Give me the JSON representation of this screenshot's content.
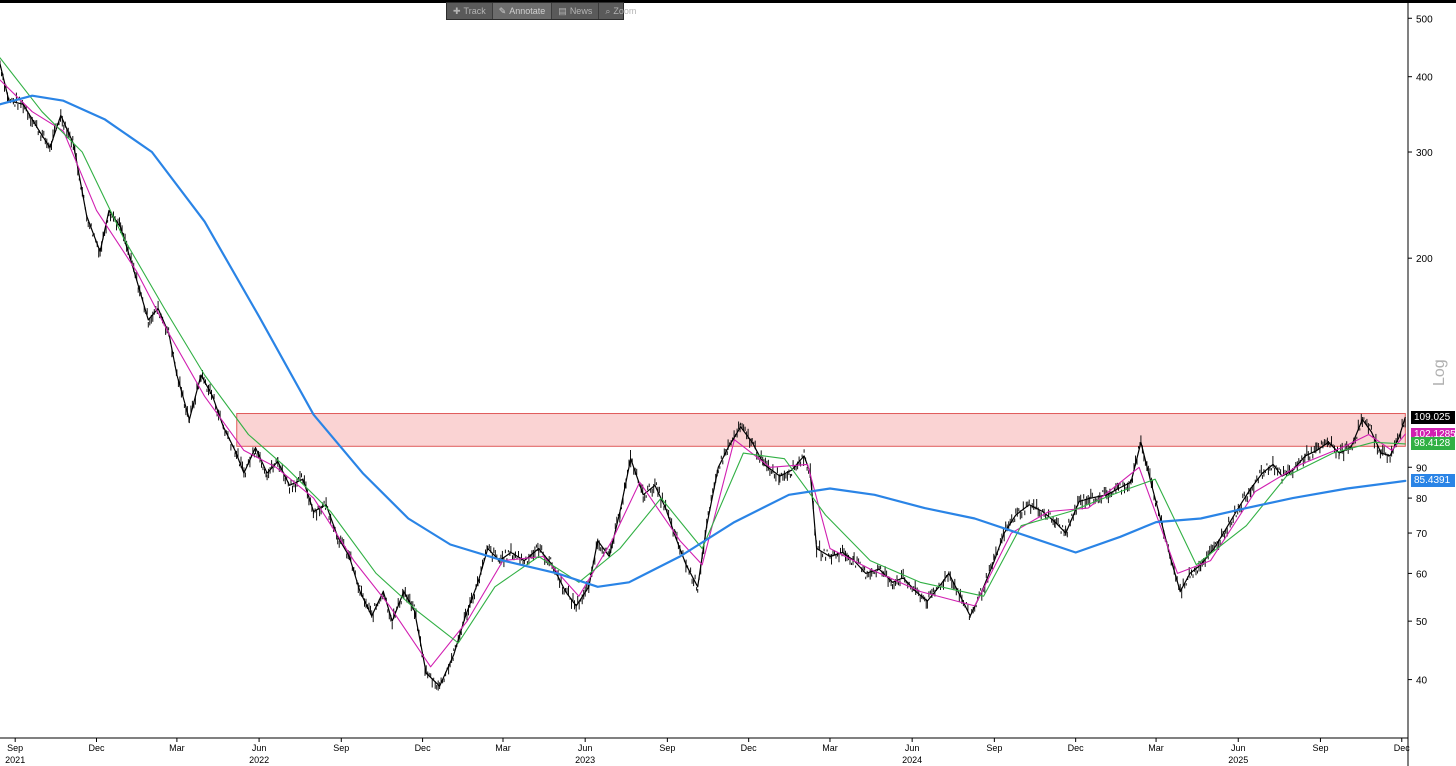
{
  "toolbar": {
    "items": [
      {
        "label": "Track",
        "icon": "crosshair-icon",
        "active": false
      },
      {
        "label": "Annotate",
        "icon": "pencil-icon",
        "active": true
      },
      {
        "label": "News",
        "icon": "news-icon",
        "active": false
      },
      {
        "label": "Zoom",
        "icon": "magnifier-icon",
        "active": false
      }
    ]
  },
  "chart_data": {
    "type": "line",
    "title": "",
    "xlabel": "",
    "ylabel": "",
    "y_scale": "log",
    "scale_label": "Log",
    "ylim": [
      32,
      520
    ],
    "xlim": [
      "2021-08-15",
      "2025-12-08"
    ],
    "y_ticks": [
      40,
      50,
      60,
      70,
      80,
      90,
      200,
      300,
      400,
      500
    ],
    "x_month_ticks": [
      {
        "date": "2021-09-01",
        "label": "Sep"
      },
      {
        "date": "2021-12-01",
        "label": "Dec"
      },
      {
        "date": "2022-03-01",
        "label": "Mar"
      },
      {
        "date": "2022-06-01",
        "label": "Jun"
      },
      {
        "date": "2022-09-01",
        "label": "Sep"
      },
      {
        "date": "2022-12-01",
        "label": "Dec"
      },
      {
        "date": "2023-03-01",
        "label": "Mar"
      },
      {
        "date": "2023-06-01",
        "label": "Jun"
      },
      {
        "date": "2023-09-01",
        "label": "Sep"
      },
      {
        "date": "2023-12-01",
        "label": "Dec"
      },
      {
        "date": "2024-03-01",
        "label": "Mar"
      },
      {
        "date": "2024-06-01",
        "label": "Jun"
      },
      {
        "date": "2024-09-01",
        "label": "Sep"
      },
      {
        "date": "2024-12-01",
        "label": "Dec"
      },
      {
        "date": "2025-03-01",
        "label": "Mar"
      },
      {
        "date": "2025-06-01",
        "label": "Jun"
      },
      {
        "date": "2025-09-01",
        "label": "Sep"
      },
      {
        "date": "2025-12-01",
        "label": "Dec"
      }
    ],
    "x_year_labels": [
      {
        "date": "2021-09-01",
        "label": "2021"
      },
      {
        "date": "2022-06-01",
        "label": "2022"
      },
      {
        "date": "2023-06-01",
        "label": "2023"
      },
      {
        "date": "2024-06-01",
        "label": "2024"
      },
      {
        "date": "2025-06-01",
        "label": "2025"
      }
    ],
    "resistance_zone": {
      "from": "2022-05-07",
      "to": "2025-12-05",
      "low": 97.5,
      "high": 110.5,
      "color": "#f8c4c4",
      "border": "#e05a5a"
    },
    "series": [
      {
        "kind": "price",
        "color": "#000000",
        "points": [
          [
            "2021-08-15",
            420
          ],
          [
            "2021-08-25",
            365
          ],
          [
            "2021-09-10",
            360
          ],
          [
            "2021-09-28",
            325
          ],
          [
            "2021-10-10",
            305
          ],
          [
            "2021-10-22",
            345
          ],
          [
            "2021-11-05",
            310
          ],
          [
            "2021-11-20",
            235
          ],
          [
            "2021-12-05",
            205
          ],
          [
            "2021-12-15",
            240
          ],
          [
            "2021-12-28",
            225
          ],
          [
            "2022-01-10",
            195
          ],
          [
            "2022-01-28",
            158
          ],
          [
            "2022-02-08",
            165
          ],
          [
            "2022-02-20",
            150
          ],
          [
            "2022-03-01",
            128
          ],
          [
            "2022-03-15",
            108
          ],
          [
            "2022-03-28",
            128
          ],
          [
            "2022-04-10",
            118
          ],
          [
            "2022-04-22",
            105
          ],
          [
            "2022-05-05",
            96
          ],
          [
            "2022-05-15",
            88
          ],
          [
            "2022-05-28",
            97
          ],
          [
            "2022-06-10",
            88
          ],
          [
            "2022-06-22",
            92
          ],
          [
            "2022-07-05",
            84
          ],
          [
            "2022-07-20",
            86
          ],
          [
            "2022-08-01",
            76
          ],
          [
            "2022-08-15",
            78
          ],
          [
            "2022-08-28",
            69
          ],
          [
            "2022-09-10",
            64
          ],
          [
            "2022-09-22",
            56
          ],
          [
            "2022-10-05",
            51
          ],
          [
            "2022-10-18",
            56
          ],
          [
            "2022-10-28",
            50
          ],
          [
            "2022-11-10",
            56
          ],
          [
            "2022-11-22",
            52
          ],
          [
            "2022-12-05",
            41
          ],
          [
            "2022-12-20",
            39
          ],
          [
            "2023-01-05",
            44
          ],
          [
            "2023-01-18",
            51
          ],
          [
            "2023-02-01",
            58
          ],
          [
            "2023-02-12",
            66
          ],
          [
            "2023-02-25",
            63
          ],
          [
            "2023-03-10",
            65
          ],
          [
            "2023-03-25",
            63
          ],
          [
            "2023-04-10",
            66
          ],
          [
            "2023-04-25",
            62
          ],
          [
            "2023-05-10",
            56
          ],
          [
            "2023-05-22",
            53
          ],
          [
            "2023-06-05",
            57
          ],
          [
            "2023-06-15",
            68
          ],
          [
            "2023-06-28",
            64
          ],
          [
            "2023-07-10",
            76
          ],
          [
            "2023-07-22",
            93
          ],
          [
            "2023-08-05",
            81
          ],
          [
            "2023-08-18",
            84
          ],
          [
            "2023-08-30",
            77
          ],
          [
            "2023-09-10",
            69
          ],
          [
            "2023-09-22",
            62
          ],
          [
            "2023-10-05",
            57
          ],
          [
            "2023-10-15",
            72
          ],
          [
            "2023-10-28",
            90
          ],
          [
            "2023-11-08",
            97
          ],
          [
            "2023-11-22",
            105
          ],
          [
            "2023-12-05",
            99
          ],
          [
            "2023-12-18",
            91
          ],
          [
            "2024-01-05",
            87
          ],
          [
            "2024-01-18",
            89
          ],
          [
            "2024-02-01",
            94
          ],
          [
            "2024-02-08",
            88
          ],
          [
            "2024-02-15",
            66
          ],
          [
            "2024-03-01",
            64
          ],
          [
            "2024-03-15",
            65
          ],
          [
            "2024-03-28",
            63
          ],
          [
            "2024-04-10",
            60
          ],
          [
            "2024-04-25",
            61
          ],
          [
            "2024-05-10",
            58
          ],
          [
            "2024-05-22",
            59
          ],
          [
            "2024-06-05",
            56
          ],
          [
            "2024-06-18",
            54
          ],
          [
            "2024-07-01",
            57
          ],
          [
            "2024-07-12",
            60
          ],
          [
            "2024-07-25",
            55
          ],
          [
            "2024-08-05",
            51
          ],
          [
            "2024-08-18",
            56
          ],
          [
            "2024-09-01",
            63
          ],
          [
            "2024-09-12",
            70
          ],
          [
            "2024-09-25",
            75
          ],
          [
            "2024-10-10",
            78
          ],
          [
            "2024-10-25",
            76
          ],
          [
            "2024-11-08",
            73
          ],
          [
            "2024-11-20",
            70
          ],
          [
            "2024-12-05",
            79
          ],
          [
            "2024-12-18",
            80
          ],
          [
            "2025-01-05",
            81
          ],
          [
            "2025-01-18",
            83
          ],
          [
            "2025-02-01",
            85
          ],
          [
            "2025-02-12",
            99
          ],
          [
            "2025-02-25",
            83
          ],
          [
            "2025-03-08",
            72
          ],
          [
            "2025-03-18",
            63
          ],
          [
            "2025-03-28",
            56
          ],
          [
            "2025-04-08",
            60
          ],
          [
            "2025-04-20",
            62
          ],
          [
            "2025-05-05",
            66
          ],
          [
            "2025-05-18",
            71
          ],
          [
            "2025-06-01",
            77
          ],
          [
            "2025-06-15",
            83
          ],
          [
            "2025-06-28",
            88
          ],
          [
            "2025-07-10",
            91
          ],
          [
            "2025-07-20",
            87
          ],
          [
            "2025-08-01",
            89
          ],
          [
            "2025-08-15",
            94
          ],
          [
            "2025-08-28",
            96
          ],
          [
            "2025-09-10",
            99
          ],
          [
            "2025-09-22",
            95
          ],
          [
            "2025-10-05",
            97
          ],
          [
            "2025-10-18",
            108
          ],
          [
            "2025-10-28",
            103
          ],
          [
            "2025-11-08",
            95
          ],
          [
            "2025-11-18",
            94
          ],
          [
            "2025-11-28",
            101
          ],
          [
            "2025-12-05",
            109
          ]
        ]
      },
      {
        "kind": "ma-short",
        "color": "#d11fb1",
        "points": [
          [
            "2021-08-15",
            395
          ],
          [
            "2021-09-20",
            350
          ],
          [
            "2021-10-25",
            325
          ],
          [
            "2021-12-01",
            240
          ],
          [
            "2022-01-15",
            190
          ],
          [
            "2022-02-20",
            150
          ],
          [
            "2022-04-01",
            118
          ],
          [
            "2022-05-15",
            96
          ],
          [
            "2022-06-20",
            90
          ],
          [
            "2022-08-01",
            80
          ],
          [
            "2022-09-15",
            63
          ],
          [
            "2022-10-25",
            53
          ],
          [
            "2022-12-10",
            42
          ],
          [
            "2023-01-20",
            50
          ],
          [
            "2023-03-01",
            63
          ],
          [
            "2023-04-15",
            64
          ],
          [
            "2023-05-25",
            55
          ],
          [
            "2023-07-01",
            68
          ],
          [
            "2023-08-01",
            85
          ],
          [
            "2023-09-15",
            68
          ],
          [
            "2023-10-10",
            62
          ],
          [
            "2023-11-15",
            100
          ],
          [
            "2023-12-25",
            90
          ],
          [
            "2024-02-05",
            91
          ],
          [
            "2024-03-01",
            66
          ],
          [
            "2024-04-15",
            61
          ],
          [
            "2024-06-10",
            56
          ],
          [
            "2024-08-10",
            53
          ],
          [
            "2024-09-20",
            70
          ],
          [
            "2024-11-01",
            76
          ],
          [
            "2024-12-15",
            77
          ],
          [
            "2025-02-10",
            90
          ],
          [
            "2025-03-25",
            60
          ],
          [
            "2025-05-01",
            63
          ],
          [
            "2025-06-20",
            82
          ],
          [
            "2025-08-10",
            91
          ],
          [
            "2025-09-25",
            97
          ],
          [
            "2025-10-25",
            102
          ],
          [
            "2025-11-20",
            96
          ],
          [
            "2025-12-05",
            102.13
          ]
        ]
      },
      {
        "kind": "ma-mid",
        "color": "#31b044",
        "points": [
          [
            "2021-08-15",
            430
          ],
          [
            "2021-10-01",
            350
          ],
          [
            "2021-11-15",
            300
          ],
          [
            "2022-01-01",
            215
          ],
          [
            "2022-02-15",
            165
          ],
          [
            "2022-04-01",
            128
          ],
          [
            "2022-05-20",
            102
          ],
          [
            "2022-07-01",
            90
          ],
          [
            "2022-08-20",
            76
          ],
          [
            "2022-10-10",
            60
          ],
          [
            "2022-11-25",
            52
          ],
          [
            "2023-01-10",
            46
          ],
          [
            "2023-02-20",
            57
          ],
          [
            "2023-04-10",
            64
          ],
          [
            "2023-05-25",
            58
          ],
          [
            "2023-07-10",
            66
          ],
          [
            "2023-08-25",
            80
          ],
          [
            "2023-10-10",
            66
          ],
          [
            "2023-11-25",
            95
          ],
          [
            "2024-01-10",
            93
          ],
          [
            "2024-02-25",
            75
          ],
          [
            "2024-04-15",
            63
          ],
          [
            "2024-06-10",
            58
          ],
          [
            "2024-08-20",
            55
          ],
          [
            "2024-10-01",
            72
          ],
          [
            "2024-11-25",
            76
          ],
          [
            "2025-01-20",
            82
          ],
          [
            "2025-02-28",
            86
          ],
          [
            "2025-04-15",
            62
          ],
          [
            "2025-06-10",
            72
          ],
          [
            "2025-07-25",
            87
          ],
          [
            "2025-09-15",
            95
          ],
          [
            "2025-10-30",
            99
          ],
          [
            "2025-12-05",
            98.41
          ]
        ]
      },
      {
        "kind": "ma-long",
        "color": "#2a84e6",
        "points": [
          [
            "2021-08-15",
            360
          ],
          [
            "2021-09-20",
            372
          ],
          [
            "2021-10-25",
            365
          ],
          [
            "2021-12-10",
            340
          ],
          [
            "2022-02-01",
            300
          ],
          [
            "2022-04-01",
            230
          ],
          [
            "2022-06-01",
            160
          ],
          [
            "2022-08-01",
            110
          ],
          [
            "2022-09-25",
            88
          ],
          [
            "2022-11-15",
            74
          ],
          [
            "2023-01-01",
            67
          ],
          [
            "2023-03-01",
            63
          ],
          [
            "2023-05-01",
            60
          ],
          [
            "2023-06-15",
            57
          ],
          [
            "2023-07-20",
            58
          ],
          [
            "2023-09-15",
            64
          ],
          [
            "2023-11-15",
            73
          ],
          [
            "2024-01-15",
            81
          ],
          [
            "2024-03-01",
            83
          ],
          [
            "2024-04-20",
            81
          ],
          [
            "2024-06-15",
            77
          ],
          [
            "2024-08-10",
            74
          ],
          [
            "2024-10-10",
            69
          ],
          [
            "2024-12-01",
            65
          ],
          [
            "2025-01-20",
            69
          ],
          [
            "2025-03-01",
            73
          ],
          [
            "2025-04-20",
            74
          ],
          [
            "2025-06-10",
            77
          ],
          [
            "2025-08-01",
            80
          ],
          [
            "2025-10-01",
            83
          ],
          [
            "2025-12-05",
            85.44
          ]
        ]
      }
    ],
    "price_tags": [
      {
        "label": "109.025",
        "value": 109.025,
        "bg": "#000000",
        "fg": "#ffffff"
      },
      {
        "label": "102.1285",
        "value": 102.1285,
        "bg": "#d11fb1",
        "fg": "#ffffff"
      },
      {
        "label": "98.4128",
        "value": 98.4128,
        "bg": "#31b044",
        "fg": "#ffffff"
      },
      {
        "label": "85.4391",
        "value": 85.4391,
        "bg": "#2a84e6",
        "fg": "#ffffff"
      }
    ]
  }
}
